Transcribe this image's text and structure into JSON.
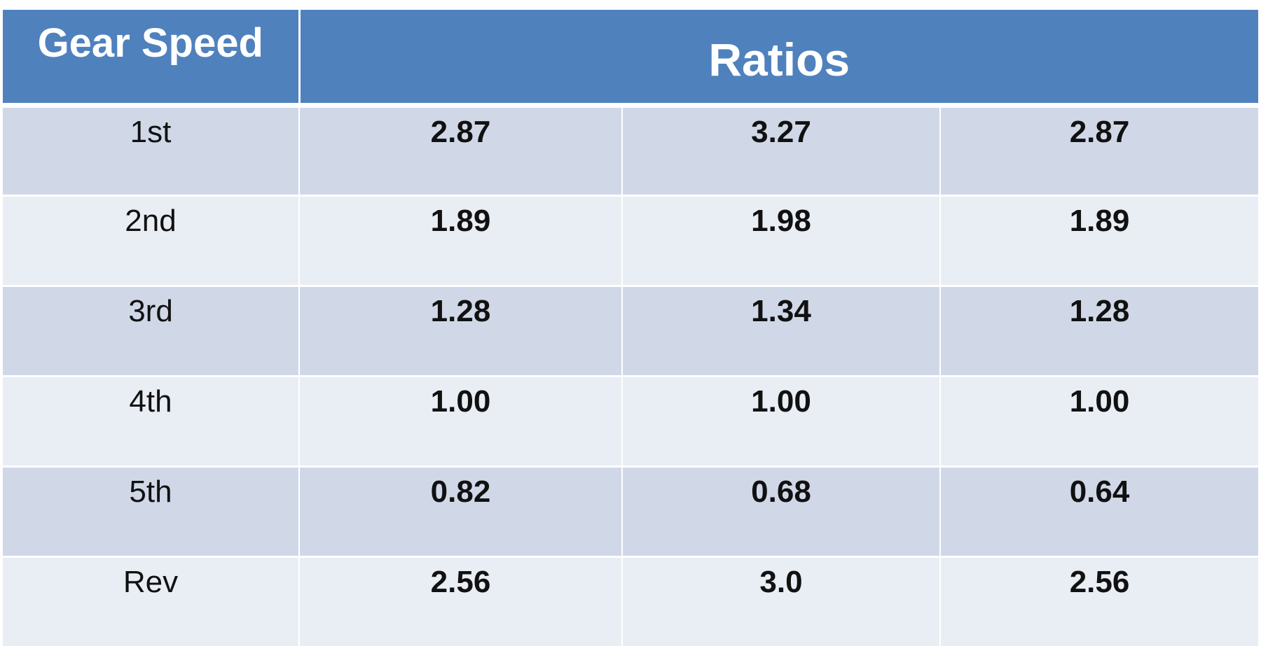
{
  "table": {
    "header": {
      "gear_speed": "Gear Speed",
      "ratios": "Ratios"
    },
    "rows": [
      {
        "gear": "1st",
        "values": [
          "2.87",
          "3.27",
          "2.87"
        ]
      },
      {
        "gear": "2nd",
        "values": [
          "1.89",
          "1.98",
          "1.89"
        ]
      },
      {
        "gear": "3rd",
        "values": [
          "1.28",
          "1.34",
          "1.28"
        ]
      },
      {
        "gear": "4th",
        "values": [
          "1.00",
          "1.00",
          "1.00"
        ]
      },
      {
        "gear": "5th",
        "values": [
          "0.82",
          "0.68",
          "0.64"
        ]
      },
      {
        "gear": "Rev",
        "values": [
          "2.56",
          "3.0",
          "2.56"
        ]
      }
    ],
    "colors": {
      "header_bg": "#4f81bd",
      "row_band_dark": "#d0d8e8",
      "row_band_light": "#e9edf4"
    }
  }
}
